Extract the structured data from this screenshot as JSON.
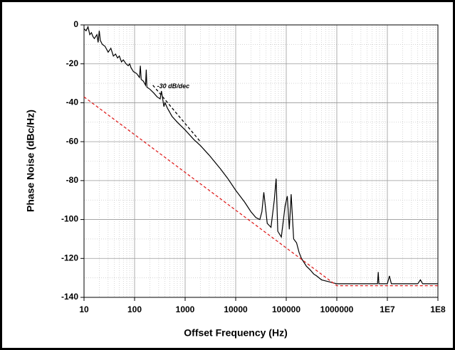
{
  "chart_data": {
    "type": "line",
    "xlabel": "Offset Frequency (Hz)",
    "ylabel": "Phase Noise (dBc/Hz)",
    "xscale": "log",
    "grid": true,
    "minor_grid": true,
    "xlim": [
      10,
      100000000
    ],
    "ylim": [
      -140,
      0
    ],
    "xticks": [
      10,
      100,
      1000,
      10000,
      100000,
      1000000,
      {
        "value": 10000000,
        "label": "1E7"
      },
      {
        "value": 100000000,
        "label": "1E8"
      }
    ],
    "yticks": [
      0,
      -20,
      -40,
      -60,
      -80,
      -100,
      -120,
      -140
    ],
    "annotations": [
      "-30 dB/dec"
    ],
    "series": [
      {
        "color": "#000000",
        "dashed": false,
        "x": [
          10,
          11,
          12,
          13,
          14,
          15,
          16,
          18,
          19,
          20,
          21,
          23,
          26,
          30,
          34,
          38,
          42,
          46,
          50,
          55,
          60,
          68,
          75,
          80,
          85,
          95,
          110,
          125,
          130,
          135,
          150,
          165,
          170,
          175,
          200,
          240,
          280,
          320,
          340,
          360,
          380,
          400,
          450,
          550,
          700,
          1000,
          1500,
          2000,
          3000,
          5000,
          7000,
          10000,
          15000,
          20000,
          25000,
          30000,
          33000,
          36000,
          42000,
          50000,
          58000,
          63000,
          68000,
          80000,
          95000,
          105000,
          115000,
          125000,
          140000,
          160000,
          180000,
          200000,
          250000,
          300000,
          350000,
          400000,
          500000,
          700000,
          1000000,
          2000000,
          5000000,
          6400000,
          6600000,
          6800000,
          10000000,
          11000000,
          12000000,
          20000000,
          40000000,
          45000000,
          50000000,
          100000000
        ],
        "values": [
          -2,
          -3,
          -1,
          -5,
          -4,
          -6,
          -7,
          -5,
          -9,
          -3,
          -8,
          -10,
          -11,
          -14,
          -12,
          -16,
          -15,
          -17,
          -16,
          -19,
          -18,
          -20,
          -21,
          -20,
          -22,
          -24,
          -25,
          -27,
          -21,
          -28,
          -29,
          -31,
          -23,
          -32,
          -33,
          -35,
          -37,
          -38,
          -34,
          -38,
          -42,
          -40,
          -43,
          -47,
          -50,
          -54,
          -59,
          -62,
          -67,
          -74,
          -79,
          -85,
          -91,
          -96,
          -99,
          -100,
          -96,
          -86,
          -102,
          -104,
          -90,
          -79,
          -106,
          -109,
          -93,
          -88,
          -105,
          -87,
          -110,
          -112,
          -117,
          -120,
          -124,
          -126,
          -128,
          -129,
          -131,
          -132,
          -133,
          -133,
          -133,
          -133,
          -127,
          -133,
          -133,
          -129,
          -133,
          -133,
          -133,
          -131,
          -133,
          -133
        ]
      },
      {
        "color": "#e02020",
        "dashed": true,
        "x": [
          10,
          1000000,
          100000000
        ],
        "values": [
          -37,
          -134,
          -134
        ]
      },
      {
        "color": "#000000",
        "dashed": true,
        "x": [
          230,
          2000
        ],
        "values": [
          -31,
          -60
        ]
      }
    ]
  }
}
